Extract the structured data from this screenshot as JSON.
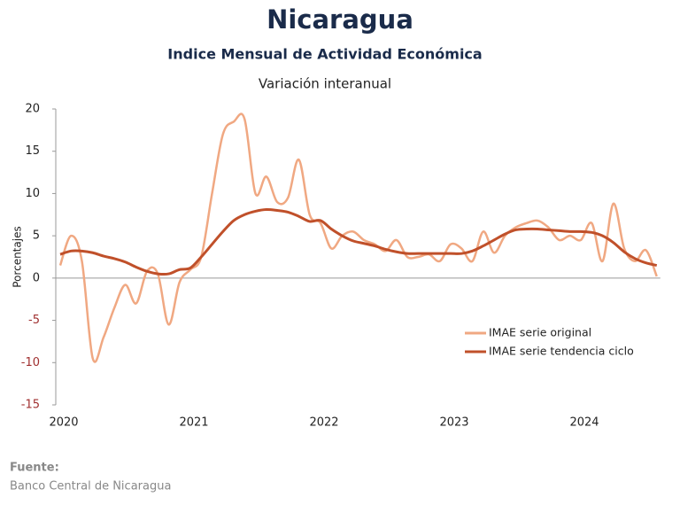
{
  "chart_data": {
    "type": "line",
    "title": "Nicaragua",
    "subtitle": "Indice Mensual de  Actividad Económica",
    "subtitle2": "Variación interanual",
    "y_label": "Porcentajes",
    "source_label": "Fuente:",
    "source": "Banco Central de Nicaragua",
    "categories": [
      "2020",
      null,
      null,
      null,
      null,
      null,
      null,
      null,
      null,
      null,
      null,
      null,
      "2021",
      null,
      null,
      null,
      null,
      null,
      null,
      null,
      null,
      null,
      null,
      null,
      "2022",
      null,
      null,
      null,
      null,
      null,
      null,
      null,
      null,
      null,
      null,
      null,
      "2023",
      null,
      null,
      null,
      null,
      null,
      null,
      null,
      null,
      null,
      null,
      null,
      "2024",
      null,
      null,
      null,
      null,
      null,
      null,
      null
    ],
    "series": [
      {
        "name": "IMAE serie original",
        "color": "#f0a882",
        "values": [
          1.5,
          5,
          2,
          -9.5,
          -7,
          -3.5,
          -0.8,
          -3,
          0.8,
          0.5,
          -5.5,
          -0.5,
          1,
          2.5,
          10,
          17,
          18.5,
          18.8,
          10,
          12,
          9,
          9.5,
          14,
          7.5,
          6.5,
          3.5,
          5,
          5.5,
          4.5,
          4,
          3.2,
          4.5,
          2.5,
          2.5,
          2.8,
          2,
          4,
          3.5,
          2,
          5.5,
          3,
          5,
          6,
          6.5,
          6.8,
          6,
          4.5,
          5,
          4.5,
          6.5,
          2,
          8.8,
          3.5,
          2,
          3.3,
          0.2
        ]
      },
      {
        "name": "IMAE serie  tendencia ciclo",
        "color": "#c0502a",
        "values": [
          2.8,
          3.2,
          3.2,
          3,
          2.6,
          2.3,
          1.9,
          1.3,
          0.8,
          0.5,
          0.5,
          1,
          1.2,
          2.5,
          4,
          5.5,
          6.8,
          7.5,
          7.9,
          8.1,
          8,
          7.8,
          7.3,
          6.7,
          6.8,
          5.8,
          5,
          4.4,
          4.1,
          3.8,
          3.4,
          3.1,
          2.9,
          2.9,
          2.9,
          2.9,
          2.9,
          2.9,
          3.2,
          3.8,
          4.5,
          5.2,
          5.7,
          5.8,
          5.8,
          5.7,
          5.6,
          5.5,
          5.5,
          5.4,
          5,
          4.2,
          3.1,
          2.3,
          1.8,
          1.5
        ]
      }
    ],
    "ylim": [
      -15,
      20
    ],
    "yticks": [
      -15,
      -10,
      -5,
      0,
      5,
      10,
      15,
      20
    ],
    "grid": false,
    "legend": "lower right"
  }
}
